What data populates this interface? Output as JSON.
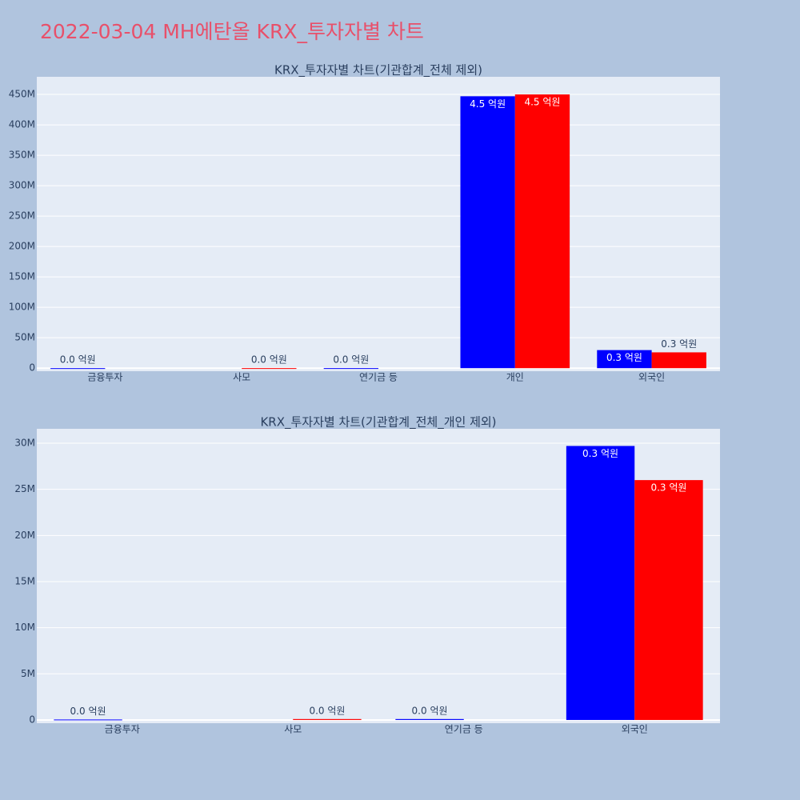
{
  "title": "2022-03-04 MH에탄올 KRX_투자자별 차트",
  "chart_data": [
    {
      "type": "bar",
      "title": "KRX_투자자별 차트(기관합계_전체 제외)",
      "categories": [
        "금융투자",
        "사모",
        "연기금 등",
        "개인",
        "외국인"
      ],
      "series": [
        {
          "color": "#0000ff",
          "values": [
            50000,
            null,
            100000,
            447000000,
            29700000
          ],
          "value_labels": [
            "0.0 억원",
            null,
            "0.0 억원",
            "4.5 억원",
            "0.3 억원"
          ]
        },
        {
          "color": "#ff0000",
          "values": [
            null,
            100000,
            null,
            450000000,
            26000000
          ],
          "value_labels": [
            null,
            "0.0 억원",
            null,
            "4.5 억원",
            "0.3 억원"
          ]
        }
      ],
      "ylim": [
        -5000000,
        479000000
      ],
      "yticks": [
        0,
        {
          "value": 50000000,
          "label": "50M"
        },
        {
          "value": 100000000,
          "label": "100M"
        },
        {
          "value": 150000000,
          "label": "150M"
        },
        {
          "value": 200000000,
          "label": "200M"
        },
        {
          "value": 250000000,
          "label": "250M"
        },
        {
          "value": 300000000,
          "label": "300M"
        },
        {
          "value": 350000000,
          "label": "350M"
        },
        {
          "value": 400000000,
          "label": "400M"
        },
        {
          "value": 450000000,
          "label": "450M"
        }
      ],
      "grid": true
    },
    {
      "type": "bar",
      "title": "KRX_투자자별 차트(기관합계_전체_개인 제외)",
      "categories": [
        "금융투자",
        "사모",
        "연기금 등",
        "외국인"
      ],
      "series": [
        {
          "color": "#0000ff",
          "values": [
            50000,
            null,
            100000,
            29700000
          ],
          "value_labels": [
            "0.0 억원",
            null,
            "0.0 억원",
            "0.3 억원"
          ]
        },
        {
          "color": "#ff0000",
          "values": [
            null,
            100000,
            null,
            26000000
          ],
          "value_labels": [
            null,
            "0.0 억원",
            null,
            "0.3 억원"
          ]
        }
      ],
      "ylim": [
        -350000,
        31560000
      ],
      "yticks": [
        0,
        {
          "value": 5000000,
          "label": "5M"
        },
        {
          "value": 10000000,
          "label": "10M"
        },
        {
          "value": 15000000,
          "label": "15M"
        },
        {
          "value": 20000000,
          "label": "20M"
        },
        {
          "value": 25000000,
          "label": "25M"
        },
        {
          "value": 30000000,
          "label": "30M"
        }
      ],
      "grid": true
    }
  ]
}
